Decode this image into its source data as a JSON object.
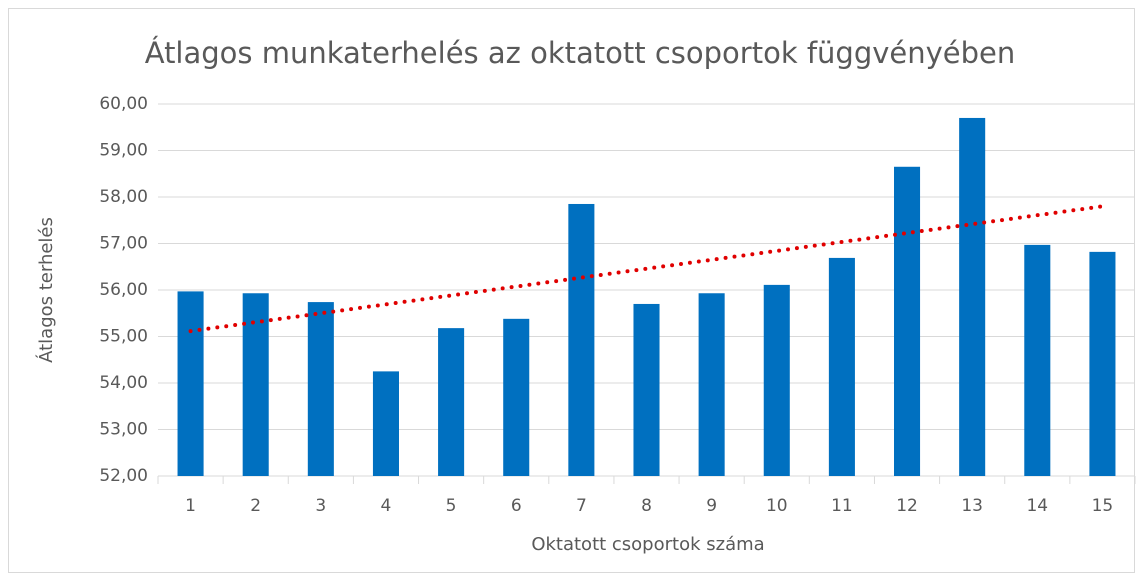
{
  "chart_data": {
    "type": "bar",
    "title": "Átlagos munkaterhelés az oktatott csoportok függvényében",
    "xlabel": "Oktatott csoportok száma",
    "ylabel": "Átlagos terhelés",
    "categories": [
      "1",
      "2",
      "3",
      "4",
      "5",
      "6",
      "7",
      "8",
      "9",
      "10",
      "11",
      "12",
      "13",
      "14",
      "15"
    ],
    "values": [
      55.97,
      55.93,
      55.74,
      54.25,
      55.18,
      55.38,
      57.85,
      55.7,
      55.93,
      56.11,
      56.69,
      58.65,
      59.7,
      56.97,
      56.82
    ],
    "color": "#0070c0",
    "trendline": {
      "type": "linear",
      "color": "#e00000",
      "style": "dotted"
    },
    "ylim": [
      52,
      60
    ],
    "yticks": [
      {
        "value": 52,
        "label": "52,00"
      },
      {
        "value": 53,
        "label": "53,00"
      },
      {
        "value": 54,
        "label": "54,00"
      },
      {
        "value": 55,
        "label": "55,00"
      },
      {
        "value": 56,
        "label": "56,00"
      },
      {
        "value": 57,
        "label": "57,00"
      },
      {
        "value": 58,
        "label": "58,00"
      },
      {
        "value": 59,
        "label": "59,00"
      },
      {
        "value": 60,
        "label": "60,00"
      }
    ],
    "grid": true
  }
}
